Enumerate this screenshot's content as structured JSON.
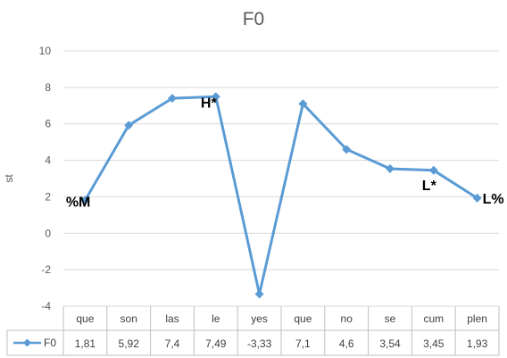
{
  "chart_data": {
    "type": "line",
    "title": "F0",
    "ylabel": "st",
    "xlabel": "",
    "ylim": [
      -4,
      10
    ],
    "yticks": [
      -4,
      -2,
      0,
      2,
      4,
      6,
      8,
      10
    ],
    "grid": true,
    "categories": [
      "que",
      "son",
      "las",
      "le",
      "yes",
      "que",
      "no",
      "se",
      "cum",
      "plen"
    ],
    "series": [
      {
        "name": "F0",
        "color": "#5b9bd5",
        "values": [
          1.81,
          5.92,
          7.4,
          7.49,
          -3.33,
          7.1,
          4.6,
          3.54,
          3.45,
          1.93
        ],
        "value_labels": [
          "1,81",
          "5,92",
          "7,4",
          "7,49",
          "-3,33",
          "7,1",
          "4,6",
          "3,54",
          "3,45",
          "1,93"
        ]
      }
    ],
    "data_table": true,
    "annotations": [
      {
        "text": "%M",
        "index": 0
      },
      {
        "text": "H*",
        "index": 3
      },
      {
        "text": "L*",
        "index": 8
      },
      {
        "text": "L%",
        "index": 9
      }
    ]
  }
}
